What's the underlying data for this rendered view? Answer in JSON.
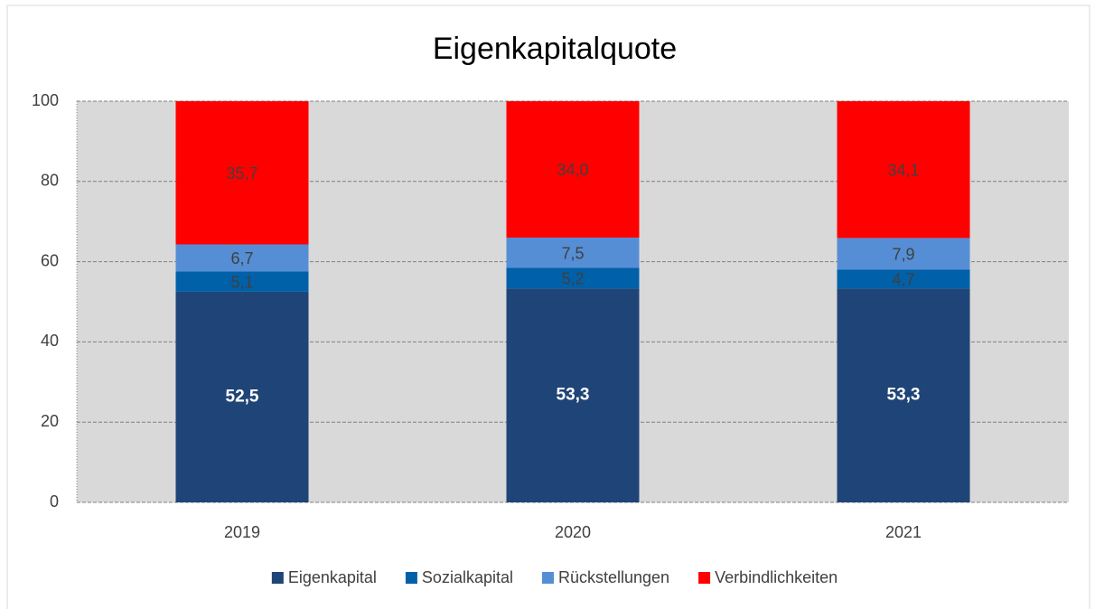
{
  "chart_data": {
    "type": "stacked_bar",
    "title": "Eigenkapitalquote",
    "categories": [
      "2019",
      "2020",
      "2021"
    ],
    "series": [
      {
        "name": "Eigenkapital",
        "color": "#1f4477",
        "values": [
          52.5,
          53.3,
          53.3
        ],
        "value_labels": [
          "52,5",
          "53,3",
          "53,3"
        ]
      },
      {
        "name": "Sozialkapital",
        "color": "#0060a8",
        "values": [
          5.1,
          5.2,
          4.7
        ],
        "value_labels": [
          "5,1",
          "5,2",
          "4,7"
        ]
      },
      {
        "name": "Rückstellungen",
        "color": "#558ed5",
        "values": [
          6.7,
          7.5,
          7.9
        ],
        "value_labels": [
          "6,7",
          "7,5",
          "7,9"
        ]
      },
      {
        "name": "Verbindlichkeiten",
        "color": "#ff0000",
        "values": [
          35.7,
          34.0,
          34.1
        ],
        "value_labels": [
          "35,7",
          "34,0",
          "34,1"
        ]
      }
    ],
    "ylim": [
      0,
      100
    ],
    "yticks": [
      0,
      20,
      40,
      60,
      80,
      100
    ],
    "grid": true,
    "legend": "bottom"
  }
}
